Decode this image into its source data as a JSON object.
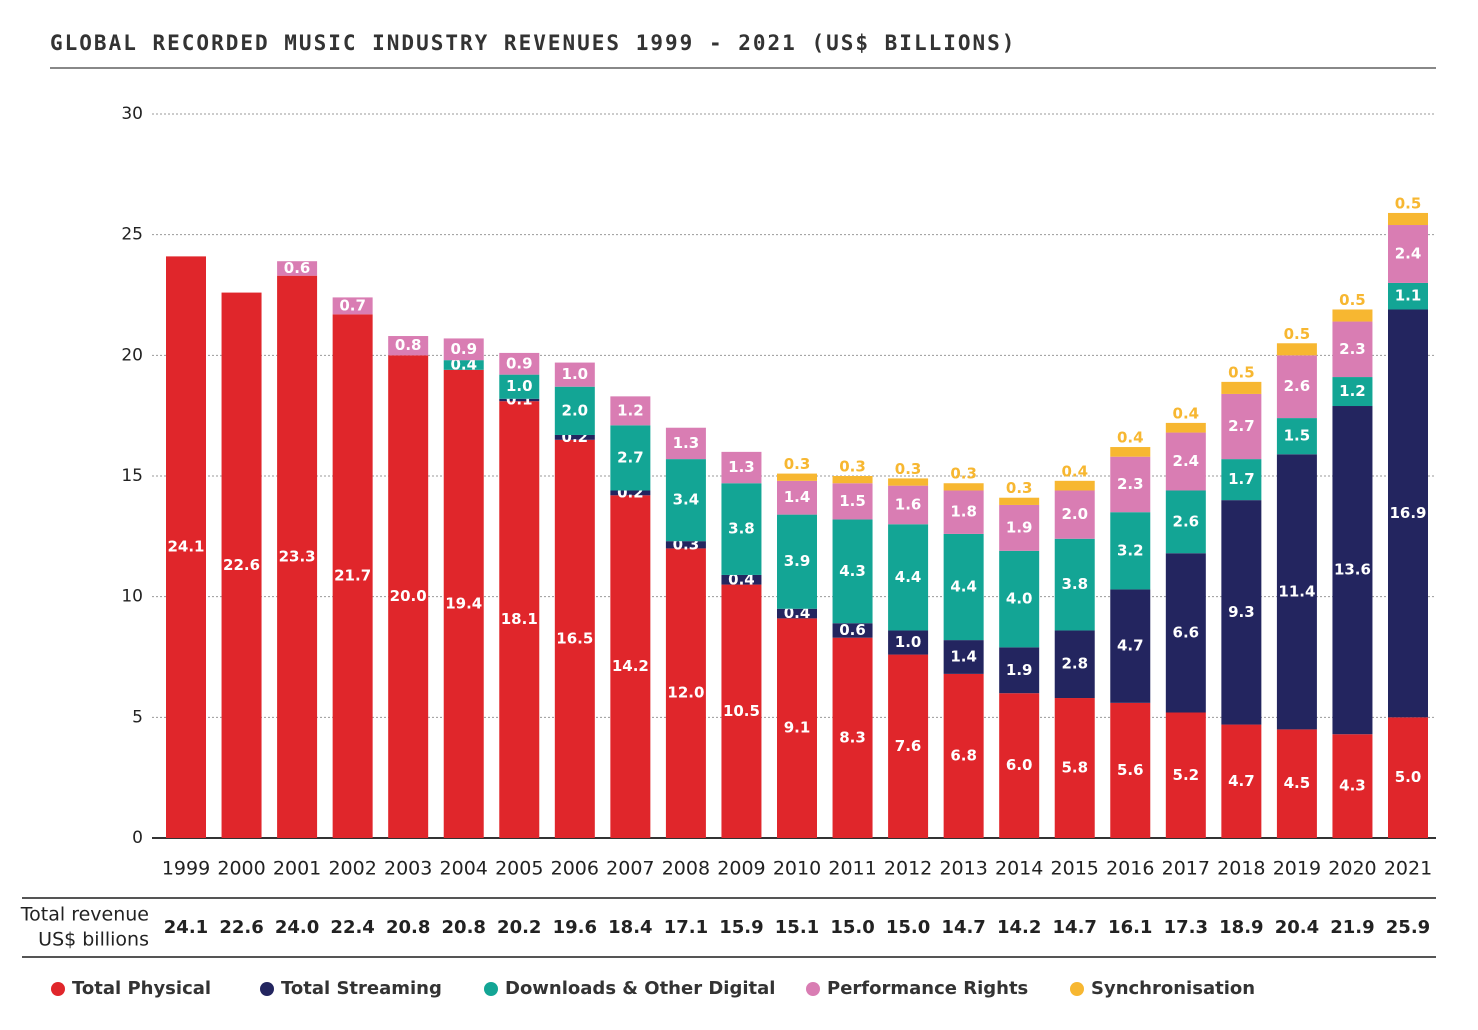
{
  "chart_data": {
    "type": "stacked_bar",
    "title": "GLOBAL RECORDED MUSIC INDUSTRY REVENUES 1999 - 2021 (US$ BILLIONS)",
    "categories": [
      "1999",
      "2000",
      "2001",
      "2002",
      "2003",
      "2004",
      "2005",
      "2006",
      "2007",
      "2008",
      "2009",
      "2010",
      "2011",
      "2012",
      "2013",
      "2014",
      "2015",
      "2016",
      "2017",
      "2018",
      "2019",
      "2020",
      "2021"
    ],
    "ylim": [
      0,
      30
    ],
    "yticks": [
      0,
      5,
      10,
      15,
      20,
      25,
      30
    ],
    "grid": true,
    "series": [
      {
        "name": "Total Physical",
        "color": "#e0262b",
        "values": [
          24.1,
          22.6,
          23.3,
          21.7,
          20.0,
          19.4,
          18.1,
          16.5,
          14.2,
          12.0,
          10.5,
          9.1,
          8.3,
          7.6,
          6.8,
          6.0,
          5.8,
          5.6,
          5.2,
          4.7,
          4.5,
          4.3,
          5.0
        ],
        "value_labels": [
          "24.1",
          "22.6",
          "23.3",
          "21.7",
          "20.0",
          "19.4",
          "18.1",
          "16.5",
          "14.2",
          "12.0",
          "10.5",
          "9.1",
          "8.3",
          "7.6",
          "6.8",
          "6.0",
          "5.8",
          "5.6",
          "5.2",
          "4.7",
          "4.5",
          "4.3",
          "5.0"
        ]
      },
      {
        "name": "Total Streaming",
        "color": "#23255f",
        "values": [
          null,
          null,
          null,
          null,
          null,
          null,
          0.1,
          0.2,
          0.2,
          0.3,
          0.4,
          0.4,
          0.6,
          1.0,
          1.4,
          1.9,
          2.8,
          4.7,
          6.6,
          9.3,
          11.4,
          13.6,
          16.9
        ],
        "value_labels": [
          null,
          null,
          null,
          null,
          null,
          null,
          "0.1",
          "0.2",
          "0.2",
          "0.3",
          "0.4",
          "0.4",
          "0.6",
          "1.0",
          "1.4",
          "1.9",
          "2.8",
          "4.7",
          "6.6",
          "9.3",
          "11.4",
          "13.6",
          "16.9"
        ]
      },
      {
        "name": "Downloads & Other Digital",
        "color": "#13a595",
        "values": [
          null,
          null,
          null,
          null,
          null,
          0.4,
          1.0,
          2.0,
          2.7,
          3.4,
          3.8,
          3.9,
          4.3,
          4.4,
          4.4,
          4.0,
          3.8,
          3.2,
          2.6,
          1.7,
          1.5,
          1.2,
          1.1
        ],
        "value_labels": [
          null,
          null,
          null,
          null,
          null,
          "0.4",
          "1.0",
          "2.0",
          "2.7",
          "3.4",
          "3.8",
          "3.9",
          "4.3",
          "4.4",
          "4.4",
          "4.0",
          "3.8",
          "3.2",
          "2.6",
          "1.7",
          "1.5",
          "1.2",
          "1.1"
        ]
      },
      {
        "name": "Performance Rights",
        "color": "#d97db3",
        "values": [
          null,
          null,
          0.6,
          0.7,
          0.8,
          0.9,
          0.9,
          1.0,
          1.2,
          1.3,
          1.3,
          1.4,
          1.5,
          1.6,
          1.8,
          1.9,
          2.0,
          2.3,
          2.4,
          2.7,
          2.6,
          2.3,
          2.4
        ],
        "value_labels": [
          null,
          null,
          "0.6",
          "0.7",
          "0.8",
          "0.9",
          "0.9",
          "1.0",
          "1.2",
          "1.3",
          "1.3",
          "1.4",
          "1.5",
          "1.6",
          "1.8",
          "1.9",
          "2.0",
          "2.3",
          "2.4",
          "2.7",
          "2.6",
          "2.3",
          "2.4"
        ]
      },
      {
        "name": "Synchronisation",
        "color": "#f7b731",
        "values": [
          null,
          null,
          null,
          null,
          null,
          null,
          null,
          null,
          null,
          null,
          null,
          0.3,
          0.3,
          0.3,
          0.3,
          0.3,
          0.4,
          0.4,
          0.4,
          0.5,
          0.5,
          0.5,
          0.5
        ],
        "value_labels": [
          null,
          null,
          null,
          null,
          null,
          null,
          null,
          null,
          null,
          null,
          null,
          "0.3",
          "0.3",
          "0.3",
          "0.3",
          "0.3",
          "0.4",
          "0.4",
          "0.4",
          "0.5",
          "0.5",
          "0.5",
          "0.5"
        ]
      }
    ],
    "totals_label": [
      "Total revenue",
      "US$ billions"
    ],
    "totals": [
      24.1,
      22.6,
      24.0,
      22.4,
      20.8,
      20.8,
      20.2,
      19.6,
      18.4,
      17.1,
      15.9,
      15.1,
      15.0,
      15.0,
      14.7,
      14.2,
      14.7,
      16.1,
      17.3,
      18.9,
      20.4,
      21.9,
      25.9
    ],
    "totals_labels": [
      "24.1",
      "22.6",
      "24.0",
      "22.4",
      "20.8",
      "20.8",
      "20.2",
      "19.6",
      "18.4",
      "17.1",
      "15.9",
      "15.1",
      "15.0",
      "15.0",
      "14.7",
      "14.2",
      "14.7",
      "16.1",
      "17.3",
      "18.9",
      "20.4",
      "21.9",
      "25.9"
    ]
  }
}
